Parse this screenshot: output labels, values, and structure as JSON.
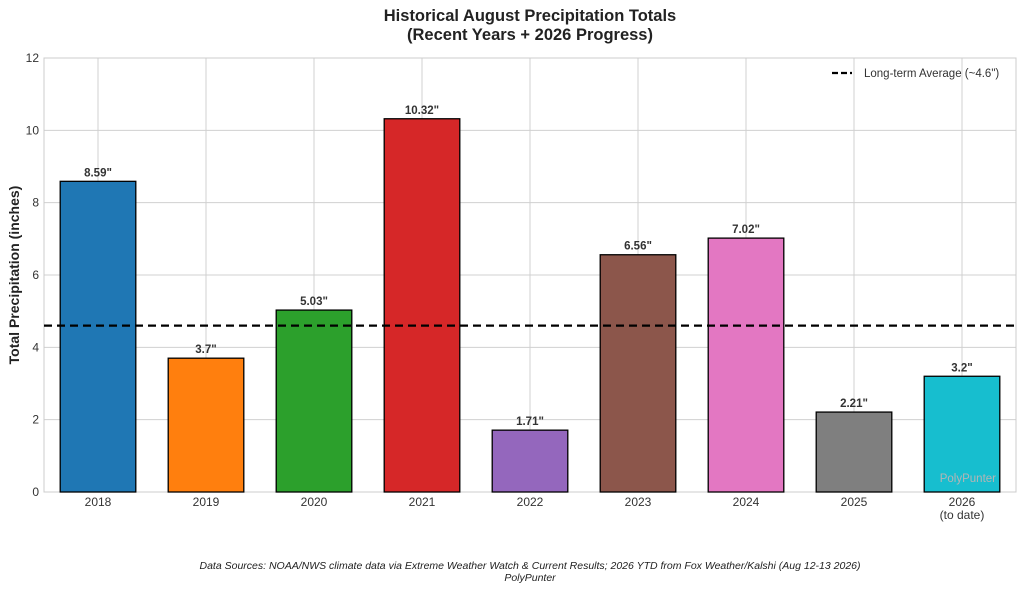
{
  "chart_data": {
    "type": "bar",
    "title": [
      "Historical August Precipitation Totals",
      "(Recent Years + 2026 Progress)"
    ],
    "xlabel": "",
    "ylabel": "Total Precipitation (inches)",
    "categories": [
      [
        "2018"
      ],
      [
        "2019"
      ],
      [
        "2020"
      ],
      [
        "2021"
      ],
      [
        "2022"
      ],
      [
        "2023"
      ],
      [
        "2024"
      ],
      [
        "2025"
      ],
      [
        "2026",
        "(to date)"
      ]
    ],
    "values": [
      8.59,
      3.7,
      5.03,
      10.32,
      1.71,
      6.56,
      7.02,
      2.21,
      3.2
    ],
    "value_labels": [
      "8.59\"",
      "3.7\"",
      "5.03\"",
      "10.32\"",
      "1.71\"",
      "6.56\"",
      "7.02\"",
      "2.21\"",
      "3.2\""
    ],
    "colors": [
      "#1f77b4",
      "#ff7f0e",
      "#2ca02c",
      "#d62728",
      "#9467bd",
      "#8c564b",
      "#e377c2",
      "#7f7f7f",
      "#17becf"
    ],
    "ylim": [
      0,
      12
    ],
    "yticks": [
      0,
      2,
      4,
      6,
      8,
      10,
      12
    ],
    "grid": true,
    "reference_line": {
      "value": 4.6,
      "label": "Long-term Average (~4.6\")",
      "style": "dashed",
      "color": "#000000"
    },
    "legend_position": "top-right",
    "footer": [
      "Data Sources: NOAA/NWS climate data via Extreme Weather Watch & Current Results; 2026 YTD from Fox Weather/Kalshi (Aug 12-13 2026)",
      "PolyPunter"
    ],
    "watermark": "PolyPunter"
  }
}
